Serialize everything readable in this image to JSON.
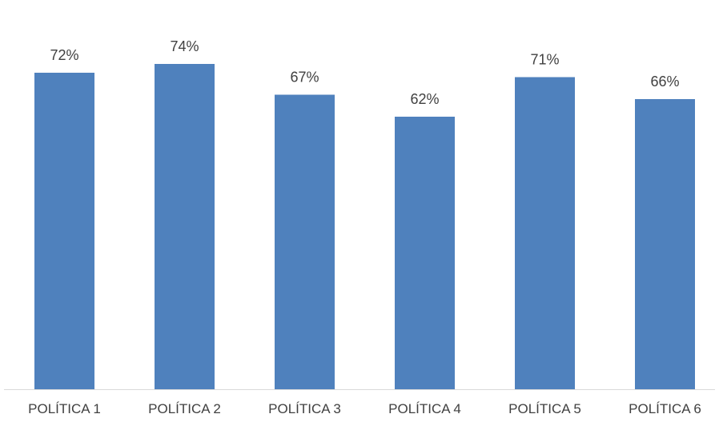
{
  "chart_data": {
    "type": "bar",
    "categories": [
      "POLÍTICA 1",
      "POLÍTICA 2",
      "POLÍTICA 3",
      "POLÍTICA 4",
      "POLÍTICA 5",
      "POLÍTICA 6"
    ],
    "values": [
      72,
      74,
      67,
      62,
      71,
      66
    ],
    "value_labels": [
      "72%",
      "74%",
      "67%",
      "62%",
      "71%",
      "66%"
    ],
    "unit": "%",
    "title": "",
    "xlabel": "",
    "ylabel": "",
    "bar_color": "#4F81BD",
    "axis_color": "#D9D9D9",
    "text_color": "#404040",
    "grid": false,
    "legend": "none"
  }
}
